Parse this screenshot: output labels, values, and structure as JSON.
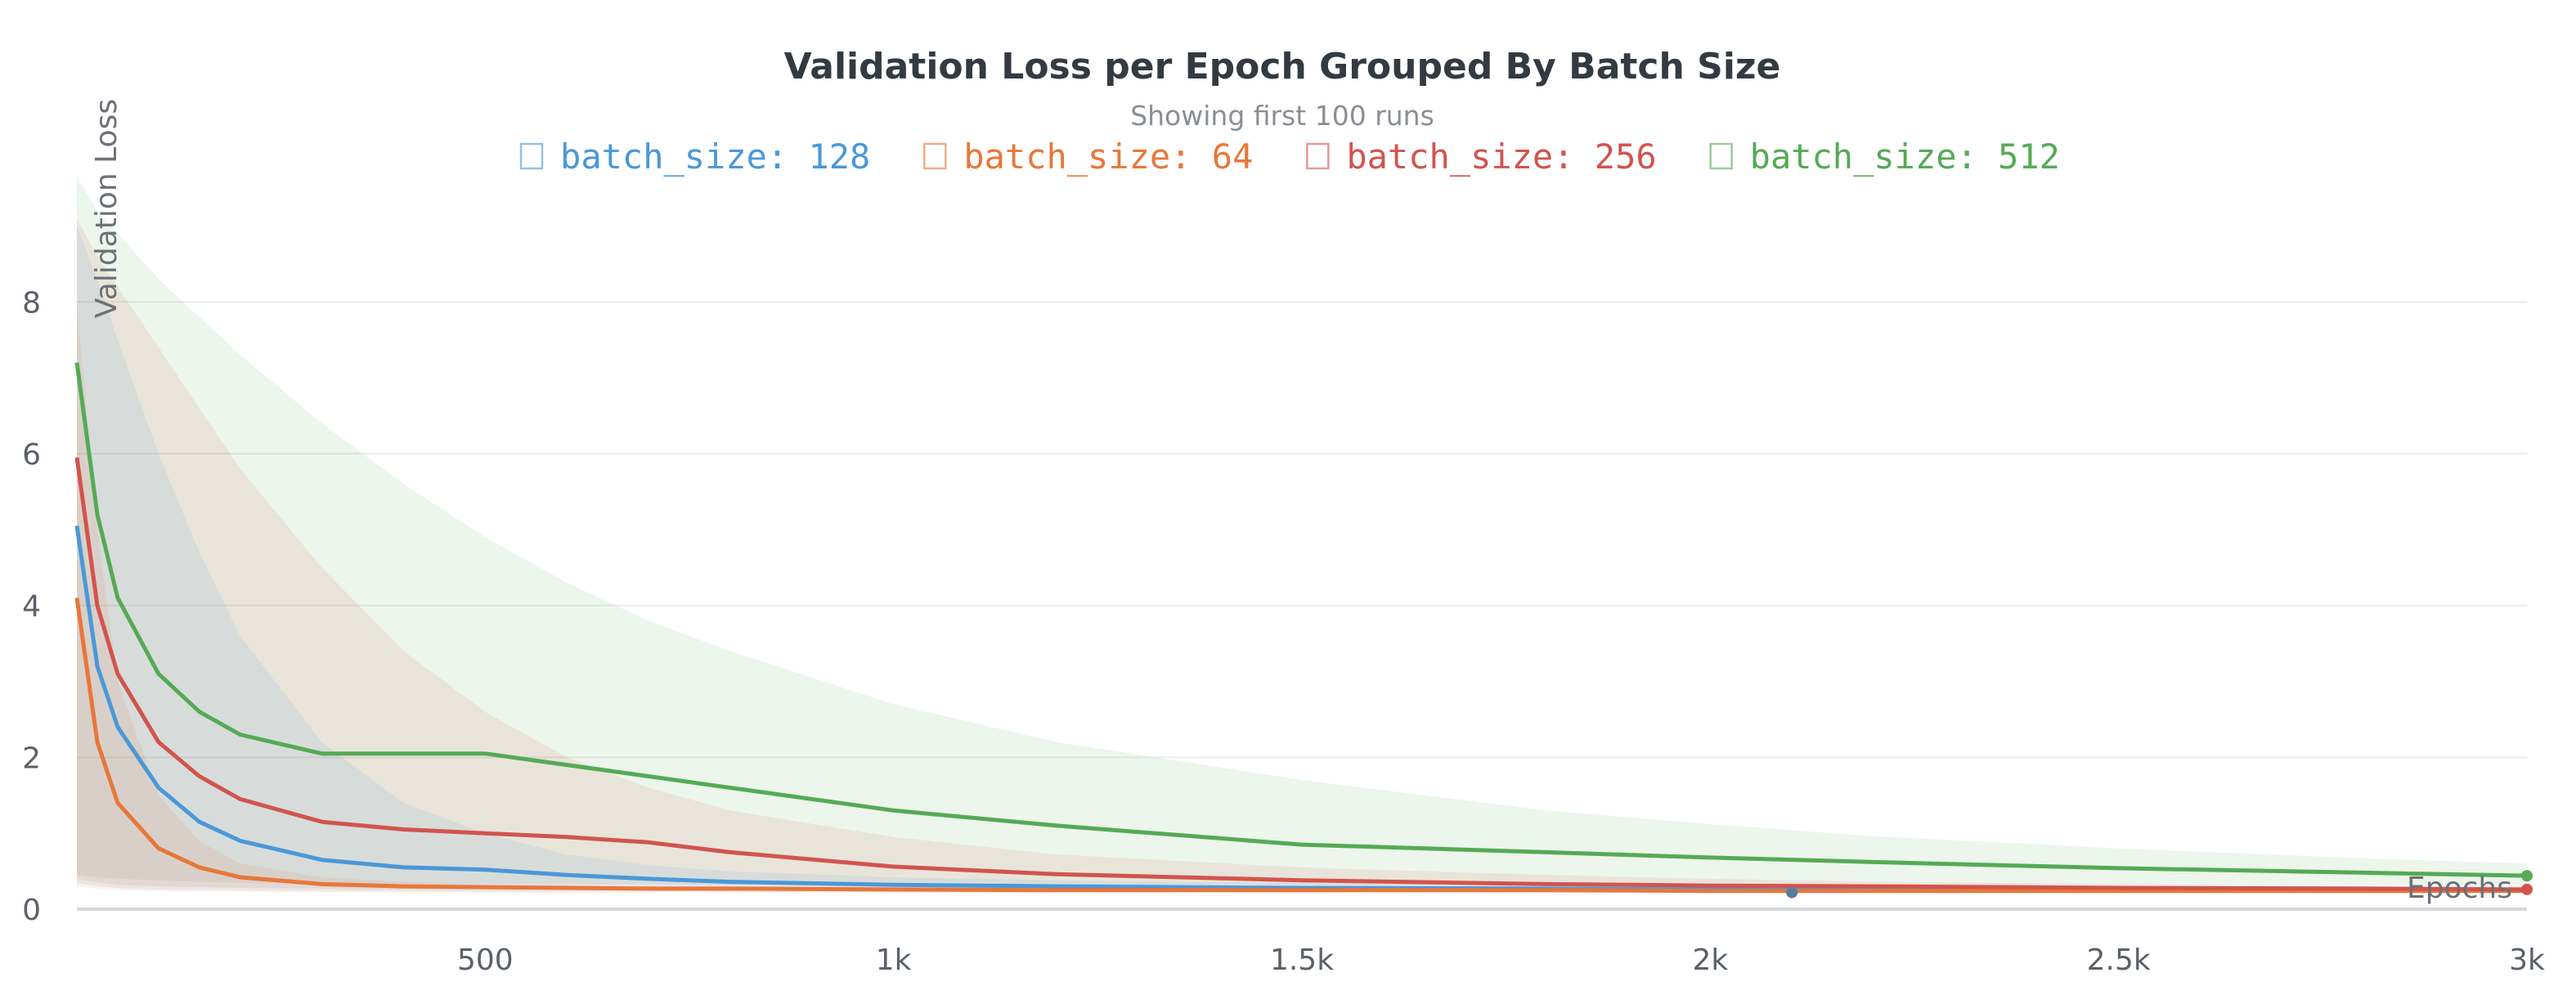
{
  "chart_data": {
    "type": "line",
    "title": "Validation Loss per Epoch Grouped By Batch Size",
    "subtitle": "Showing first 100 runs",
    "xlabel": "Epochs",
    "ylabel": "Validation Loss",
    "xlim": [
      0,
      3000
    ],
    "ylim": [
      0,
      9.5
    ],
    "x_ticks": [
      500,
      1000,
      1500,
      2000,
      2500,
      3000
    ],
    "x_tick_labels": [
      "500",
      "1k",
      "1.5k",
      "2k",
      "2.5k",
      "3k"
    ],
    "y_ticks": [
      0,
      2,
      4,
      6,
      8
    ],
    "y_tick_labels": [
      "0",
      "2",
      "4",
      "6",
      "8"
    ],
    "grid": true,
    "legend_position": "top",
    "x": [
      0,
      25,
      50,
      100,
      150,
      200,
      300,
      400,
      500,
      600,
      700,
      800,
      1000,
      1200,
      1500,
      1800,
      2000,
      2200,
      2500,
      2800,
      3000
    ],
    "series": [
      {
        "name": "batch_size: 128",
        "color": "#4a98d9",
        "values": [
          5.05,
          3.2,
          2.4,
          1.6,
          1.15,
          0.9,
          0.65,
          0.55,
          0.52,
          0.45,
          0.4,
          0.36,
          0.32,
          0.3,
          0.28,
          0.27,
          0.26,
          0.26,
          0.25,
          0.25,
          0.25
        ],
        "band_upper": [
          9.0,
          8.3,
          7.5,
          6.0,
          4.7,
          3.6,
          2.2,
          1.4,
          1.0,
          0.72,
          0.58,
          0.5,
          0.42,
          0.38,
          0.34,
          0.32,
          0.31,
          0.3,
          0.29,
          0.28,
          0.28
        ],
        "band_lower": [
          0.35,
          0.3,
          0.28,
          0.26,
          0.25,
          0.25,
          0.24,
          0.24,
          0.23,
          0.23,
          0.23,
          0.23,
          0.22,
          0.22,
          0.22,
          0.22,
          0.22,
          0.22,
          0.22,
          0.22,
          0.22
        ]
      },
      {
        "name": "batch_size: 64",
        "color": "#e8773a",
        "values": [
          4.1,
          2.2,
          1.4,
          0.8,
          0.55,
          0.42,
          0.33,
          0.3,
          0.29,
          0.28,
          0.27,
          0.27,
          0.26,
          0.25,
          0.25,
          0.25,
          0.24,
          0.24,
          0.24,
          0.24,
          0.24
        ],
        "band_upper": [
          8.0,
          5.0,
          3.0,
          1.5,
          0.9,
          0.6,
          0.42,
          0.36,
          0.33,
          0.31,
          0.3,
          0.29,
          0.28,
          0.27,
          0.27,
          0.27,
          0.26,
          0.26,
          0.26,
          0.26,
          0.26
        ],
        "band_lower": [
          0.3,
          0.27,
          0.25,
          0.24,
          0.23,
          0.23,
          0.22,
          0.22,
          0.22,
          0.22,
          0.22,
          0.22,
          0.22,
          0.22,
          0.22,
          0.22,
          0.22,
          0.22,
          0.22,
          0.22,
          0.22
        ]
      },
      {
        "name": "batch_size: 256",
        "color": "#d1544d",
        "values": [
          5.95,
          4.0,
          3.1,
          2.2,
          1.75,
          1.45,
          1.15,
          1.05,
          1.0,
          0.95,
          0.88,
          0.75,
          0.56,
          0.46,
          0.38,
          0.33,
          0.31,
          0.3,
          0.28,
          0.27,
          0.26
        ],
        "band_upper": [
          9.1,
          8.6,
          8.2,
          7.4,
          6.6,
          5.8,
          4.5,
          3.4,
          2.6,
          2.0,
          1.6,
          1.3,
          0.95,
          0.72,
          0.55,
          0.45,
          0.4,
          0.36,
          0.33,
          0.31,
          0.3
        ],
        "band_lower": [
          0.4,
          0.35,
          0.32,
          0.3,
          0.29,
          0.28,
          0.27,
          0.26,
          0.26,
          0.25,
          0.25,
          0.25,
          0.24,
          0.24,
          0.24,
          0.24,
          0.24,
          0.24,
          0.24,
          0.24,
          0.24
        ]
      },
      {
        "name": "batch_size: 512",
        "color": "#55aa55",
        "values": [
          7.2,
          5.2,
          4.1,
          3.1,
          2.6,
          2.3,
          2.05,
          2.05,
          2.05,
          1.9,
          1.75,
          1.6,
          1.3,
          1.1,
          0.85,
          0.75,
          0.68,
          0.62,
          0.54,
          0.48,
          0.44
        ],
        "band_upper": [
          9.65,
          9.2,
          8.9,
          8.3,
          7.8,
          7.3,
          6.4,
          5.6,
          4.9,
          4.3,
          3.8,
          3.4,
          2.7,
          2.2,
          1.7,
          1.3,
          1.12,
          0.96,
          0.8,
          0.67,
          0.6
        ],
        "band_lower": [
          0.45,
          0.42,
          0.4,
          0.38,
          0.36,
          0.35,
          0.34,
          0.33,
          0.33,
          0.33,
          0.33,
          0.32,
          0.32,
          0.32,
          0.32,
          0.32,
          0.32,
          0.32,
          0.32,
          0.32,
          0.32
        ]
      }
    ],
    "markers": [
      {
        "x": 2100,
        "y": 0.22,
        "color": "#5a7a9a"
      },
      {
        "x": 3000,
        "y": 0.44,
        "color": "#55aa55"
      },
      {
        "x": 3000,
        "y": 0.26,
        "color": "#d1544d"
      }
    ]
  }
}
